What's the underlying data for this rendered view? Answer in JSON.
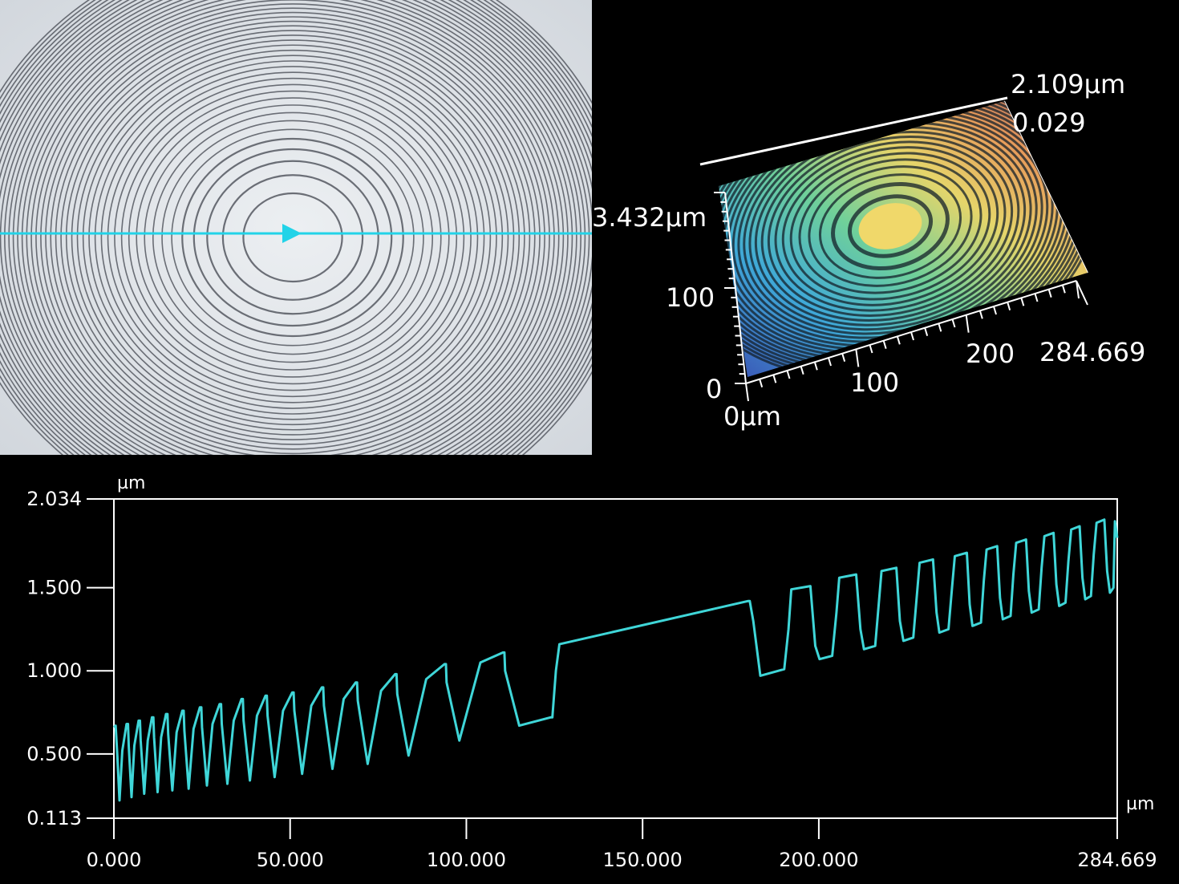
{
  "colors": {
    "background": "#000000",
    "fringe_bg": "#dfe3e8",
    "fringe_ring": "#4b4f57",
    "scan_line": "#22d3e8",
    "profile_trace": "#3fd6d8",
    "axis": "#ffffff"
  },
  "fringe_view": {
    "icons": [
      "scan-direction-arrow-icon"
    ]
  },
  "surface_3d": {
    "labels": {
      "z_max": "2.109µm",
      "z_min": "0.029",
      "y_max": "3.432µm",
      "y_mid": "100",
      "y_zero": "0",
      "origin": "0µm",
      "x_100": "100",
      "x_200": "200",
      "x_max": "284.669"
    }
  },
  "chart_data": {
    "type": "line",
    "title": "",
    "xlabel": "µm",
    "ylabel": "µm",
    "xlim": [
      0,
      284.669
    ],
    "ylim": [
      0.113,
      2.034
    ],
    "x_ticks": [
      "0.000",
      "50.000",
      "100.000",
      "150.000",
      "200.000",
      "284.669"
    ],
    "y_ticks": [
      "2.034",
      "1.500",
      "1.000",
      "0.500",
      "0.113"
    ],
    "grid": false,
    "series": [
      {
        "values": [
          [
            0.0,
            0.66
          ],
          [
            0.5,
            0.67
          ],
          [
            1.0,
            0.48
          ],
          [
            1.6,
            0.22
          ],
          [
            2.4,
            0.52
          ],
          [
            3.6,
            0.68
          ],
          [
            4.0,
            0.68
          ],
          [
            4.2,
            0.55
          ],
          [
            5.0,
            0.24
          ],
          [
            5.8,
            0.55
          ],
          [
            7.0,
            0.7
          ],
          [
            7.4,
            0.7
          ],
          [
            7.6,
            0.58
          ],
          [
            8.6,
            0.26
          ],
          [
            9.6,
            0.58
          ],
          [
            10.8,
            0.72
          ],
          [
            11.2,
            0.72
          ],
          [
            11.4,
            0.6
          ],
          [
            12.4,
            0.27
          ],
          [
            13.4,
            0.6
          ],
          [
            14.8,
            0.74
          ],
          [
            15.2,
            0.74
          ],
          [
            15.4,
            0.62
          ],
          [
            16.6,
            0.28
          ],
          [
            17.8,
            0.63
          ],
          [
            19.4,
            0.76
          ],
          [
            19.8,
            0.76
          ],
          [
            20.0,
            0.64
          ],
          [
            21.2,
            0.29
          ],
          [
            22.6,
            0.65
          ],
          [
            24.4,
            0.78
          ],
          [
            24.8,
            0.78
          ],
          [
            25.0,
            0.66
          ],
          [
            26.4,
            0.31
          ],
          [
            28.0,
            0.68
          ],
          [
            30.0,
            0.8
          ],
          [
            30.4,
            0.8
          ],
          [
            30.6,
            0.68
          ],
          [
            32.2,
            0.32
          ],
          [
            34.0,
            0.7
          ],
          [
            36.2,
            0.83
          ],
          [
            36.6,
            0.83
          ],
          [
            36.8,
            0.7
          ],
          [
            38.6,
            0.34
          ],
          [
            40.6,
            0.73
          ],
          [
            43.0,
            0.85
          ],
          [
            43.4,
            0.85
          ],
          [
            43.6,
            0.73
          ],
          [
            45.6,
            0.36
          ],
          [
            48.0,
            0.76
          ],
          [
            50.6,
            0.87
          ],
          [
            51.0,
            0.87
          ],
          [
            51.2,
            0.76
          ],
          [
            53.4,
            0.38
          ],
          [
            56.0,
            0.79
          ],
          [
            59.0,
            0.9
          ],
          [
            59.4,
            0.9
          ],
          [
            59.6,
            0.79
          ],
          [
            62.0,
            0.41
          ],
          [
            65.2,
            0.83
          ],
          [
            68.6,
            0.93
          ],
          [
            69.0,
            0.93
          ],
          [
            69.2,
            0.82
          ],
          [
            72.0,
            0.44
          ],
          [
            75.8,
            0.88
          ],
          [
            79.8,
            0.98
          ],
          [
            80.2,
            0.98
          ],
          [
            80.4,
            0.86
          ],
          [
            83.6,
            0.49
          ],
          [
            88.6,
            0.95
          ],
          [
            93.8,
            1.04
          ],
          [
            94.2,
            1.04
          ],
          [
            94.4,
            0.93
          ],
          [
            98.0,
            0.58
          ],
          [
            104.0,
            1.05
          ],
          [
            110.4,
            1.11
          ],
          [
            110.8,
            1.11
          ],
          [
            111.0,
            1.0
          ],
          [
            115.0,
            0.67
          ],
          [
            124.0,
            0.72
          ],
          [
            124.4,
            0.72
          ],
          [
            125.4,
            1.0
          ],
          [
            126.4,
            1.16
          ],
          [
            180.0,
            1.42
          ],
          [
            180.4,
            1.42
          ],
          [
            181.4,
            1.3
          ],
          [
            183.4,
            0.97
          ],
          [
            190.2,
            1.01
          ],
          [
            191.4,
            1.25
          ],
          [
            192.2,
            1.49
          ],
          [
            197.6,
            1.51
          ],
          [
            199.0,
            1.15
          ],
          [
            200.2,
            1.07
          ],
          [
            203.8,
            1.09
          ],
          [
            205.0,
            1.35
          ],
          [
            205.8,
            1.56
          ],
          [
            210.6,
            1.58
          ],
          [
            211.8,
            1.25
          ],
          [
            212.8,
            1.13
          ],
          [
            216.0,
            1.15
          ],
          [
            217.0,
            1.4
          ],
          [
            217.8,
            1.6
          ],
          [
            222.0,
            1.62
          ],
          [
            223.0,
            1.3
          ],
          [
            224.0,
            1.18
          ],
          [
            226.8,
            1.2
          ],
          [
            227.8,
            1.45
          ],
          [
            228.6,
            1.65
          ],
          [
            232.4,
            1.67
          ],
          [
            233.4,
            1.35
          ],
          [
            234.2,
            1.23
          ],
          [
            236.8,
            1.25
          ],
          [
            237.8,
            1.5
          ],
          [
            238.6,
            1.69
          ],
          [
            242.0,
            1.71
          ],
          [
            242.8,
            1.4
          ],
          [
            243.6,
            1.27
          ],
          [
            246.0,
            1.29
          ],
          [
            246.8,
            1.54
          ],
          [
            247.6,
            1.73
          ],
          [
            250.6,
            1.75
          ],
          [
            251.4,
            1.44
          ],
          [
            252.2,
            1.31
          ],
          [
            254.4,
            1.33
          ],
          [
            255.2,
            1.58
          ],
          [
            256.0,
            1.77
          ],
          [
            258.8,
            1.79
          ],
          [
            259.6,
            1.48
          ],
          [
            260.4,
            1.35
          ],
          [
            262.4,
            1.37
          ],
          [
            263.2,
            1.62
          ],
          [
            264.0,
            1.81
          ],
          [
            266.6,
            1.83
          ],
          [
            267.4,
            1.52
          ],
          [
            268.2,
            1.39
          ],
          [
            270.0,
            1.41
          ],
          [
            270.8,
            1.66
          ],
          [
            271.6,
            1.85
          ],
          [
            274.0,
            1.87
          ],
          [
            274.8,
            1.56
          ],
          [
            275.6,
            1.43
          ],
          [
            277.2,
            1.45
          ],
          [
            278.0,
            1.7
          ],
          [
            278.8,
            1.89
          ],
          [
            281.0,
            1.91
          ],
          [
            281.8,
            1.6
          ],
          [
            282.6,
            1.47
          ],
          [
            283.6,
            1.5
          ],
          [
            284.0,
            1.9
          ],
          [
            284.669,
            1.8
          ]
        ]
      }
    ]
  }
}
